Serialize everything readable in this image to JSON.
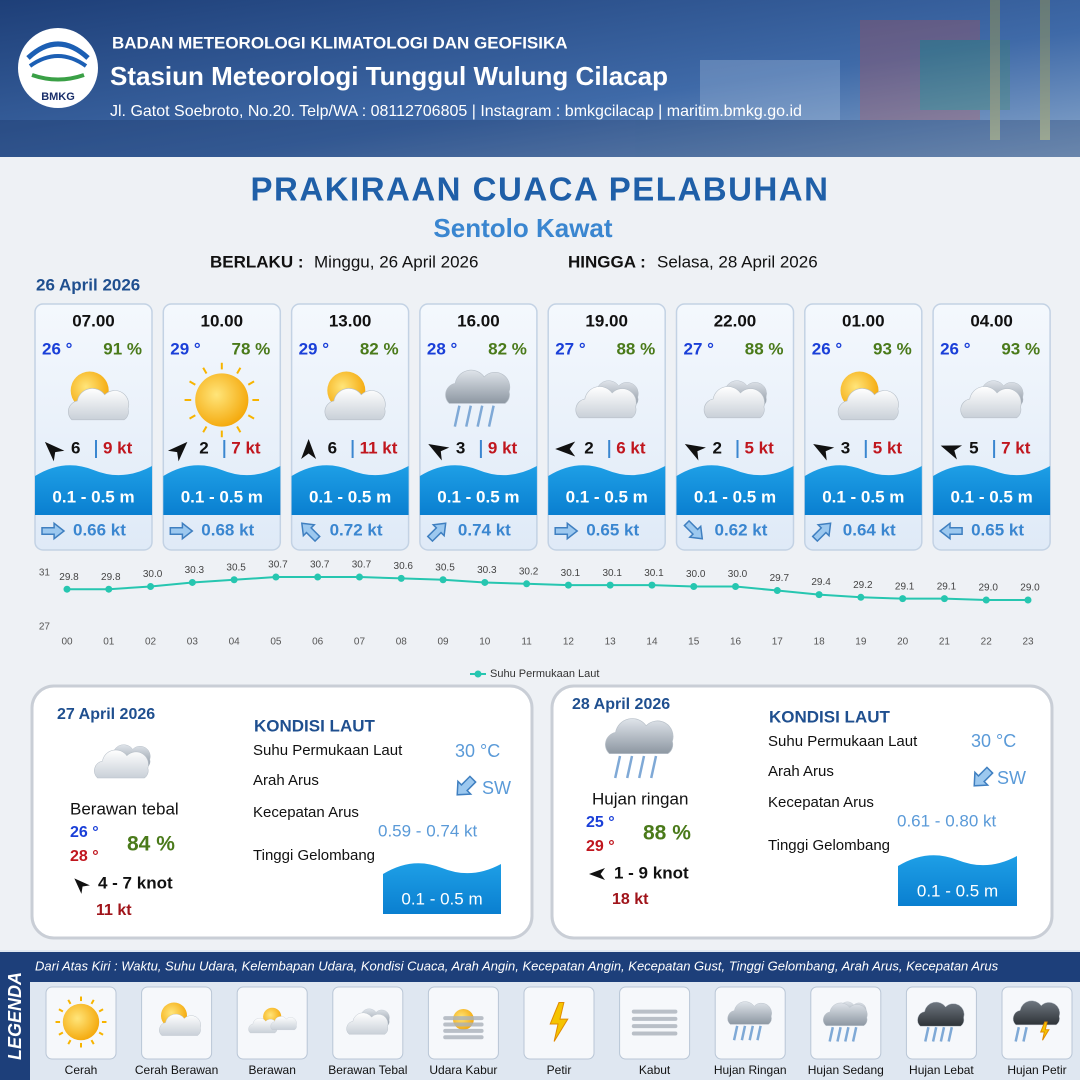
{
  "header": {
    "logo_text": "BMKG",
    "agency": "BADAN METEOROLOGI KLIMATOLOGI DAN GEOFISIKA",
    "station": "Stasiun Meteorologi Tunggul Wulung Cilacap",
    "contact": "Jl. Gatot Soebroto, No.20. Telp/WA : 08112706805 | Instagram : bmkgcilacap | maritim.bmkg.go.id"
  },
  "title": "PRAKIRAAN CUACA PELABUHAN",
  "location": "Sentolo Kawat",
  "validity": {
    "from_label": "BERLAKU :",
    "from": "Minggu, 26 April 2026",
    "to_label": "HINGGA :",
    "to": "Selasa, 28 April 2026"
  },
  "today": {
    "date": "26 April 2026",
    "forecasts": [
      {
        "time": "07.00",
        "temp": "26 °",
        "humidity": "91 %",
        "wind": "6",
        "gust": "9 kt",
        "wave": "0.1 - 0.5 m",
        "current": "0.66 kt"
      },
      {
        "time": "10.00",
        "temp": "29 °",
        "humidity": "78 %",
        "wind": "2",
        "gust": "7 kt",
        "wave": "0.1 - 0.5 m",
        "current": "0.68 kt"
      },
      {
        "time": "13.00",
        "temp": "29 °",
        "humidity": "82 %",
        "wind": "6",
        "gust": "11 kt",
        "wave": "0.1 - 0.5 m",
        "current": "0.72 kt"
      },
      {
        "time": "16.00",
        "temp": "28 °",
        "humidity": "82 %",
        "wind": "3",
        "gust": "9 kt",
        "wave": "0.1 - 0.5 m",
        "current": "0.74 kt"
      },
      {
        "time": "19.00",
        "temp": "27 °",
        "humidity": "88 %",
        "wind": "2",
        "gust": "6 kt",
        "wave": "0.1 - 0.5 m",
        "current": "0.65 kt"
      },
      {
        "time": "22.00",
        "temp": "27 °",
        "humidity": "88 %",
        "wind": "2",
        "gust": "5 kt",
        "wave": "0.1 - 0.5 m",
        "current": "0.62 kt"
      },
      {
        "time": "01.00",
        "temp": "26 °",
        "humidity": "93 %",
        "wind": "3",
        "gust": "5 kt",
        "wave": "0.1 - 0.5 m",
        "current": "0.64 kt"
      },
      {
        "time": "04.00",
        "temp": "26 °",
        "humidity": "93 %",
        "wind": "5",
        "gust": "7 kt",
        "wave": "0.1 - 0.5 m",
        "current": "0.65 kt"
      }
    ]
  },
  "chart_data": {
    "type": "line",
    "categories": [
      "00",
      "01",
      "02",
      "03",
      "04",
      "05",
      "06",
      "07",
      "08",
      "09",
      "10",
      "11",
      "12",
      "13",
      "14",
      "15",
      "16",
      "17",
      "18",
      "19",
      "20",
      "21",
      "22",
      "23"
    ],
    "series": [
      {
        "name": "Suhu Permukaan Laut",
        "color": "#26c6b0",
        "values": [
          29.8,
          29.8,
          30.0,
          30.3,
          30.5,
          30.7,
          30.7,
          30.7,
          30.6,
          30.5,
          30.3,
          30.2,
          30.1,
          30.1,
          30.1,
          30.0,
          30.0,
          29.7,
          29.4,
          29.2,
          29.1,
          29.1,
          29.0,
          29.0
        ],
        "value_labels": [
          "29.8",
          "29.8",
          "30.0",
          "30.3",
          "30.5",
          "30.7",
          "30.7",
          "30.7",
          "30.6",
          "30.5",
          "30.3",
          "30.2",
          "30.1",
          "30.1",
          "30.1",
          "30.0",
          "30.0",
          "29.7",
          "29.4",
          "29.2",
          "29.1",
          "29.1",
          "29.0",
          "29.0"
        ]
      }
    ],
    "ylim": [
      27,
      31
    ],
    "yticks": [
      27,
      31
    ],
    "grid": false,
    "legend": "bottom"
  },
  "days": [
    {
      "date": "27 April 2026",
      "condition": "Berawan tebal",
      "temp_min": "26 °",
      "temp_max": "28 °",
      "humidity": "84 %",
      "wind": "4  - 7 knot",
      "gust": "11 kt",
      "sea_title": "KONDISI LAUT",
      "sst_label": "Suhu Permukaan Laut",
      "sst": "30 °C",
      "dir_label": "Arah Arus",
      "dir": "SW",
      "speed_label": "Kecepatan Arus",
      "speed": "0.59  -  0.74 kt",
      "wave_label": "Tinggi Gelombang",
      "wave": "0.1 - 0.5 m"
    },
    {
      "date": "28 April 2026",
      "condition": "Hujan ringan",
      "temp_min": "25 °",
      "temp_max": "29 °",
      "humidity": "88 %",
      "wind": "1  - 9 knot",
      "gust": "18 kt",
      "sea_title": "KONDISI LAUT",
      "sst_label": "Suhu Permukaan Laut",
      "sst": "30 °C",
      "dir_label": "Arah Arus",
      "dir": "SW",
      "speed_label": "Kecepatan Arus",
      "speed": "0.61 - 0.80 kt",
      "wave_label": "Tinggi Gelombang",
      "wave": "0.1 - 0.5 m"
    }
  ],
  "legend": {
    "title": "LEGENDA",
    "description": "Dari Atas Kiri : Waktu, Suhu Udara, Kelembapan Udara, Kondisi Cuaca, Arah Angin, Kecepatan Angin, Kecepatan Gust, Tinggi Gelombang, Arah Arus, Kecepatan Arus",
    "items": [
      "Cerah",
      "Cerah Berawan",
      "Berawan",
      "Berawan Tebal",
      "Udara Kabur",
      "Petir",
      "Kabut",
      "Hujan Ringan",
      "Hujan Sedang",
      "Hujan Lebat",
      "Hujan Petir"
    ]
  }
}
